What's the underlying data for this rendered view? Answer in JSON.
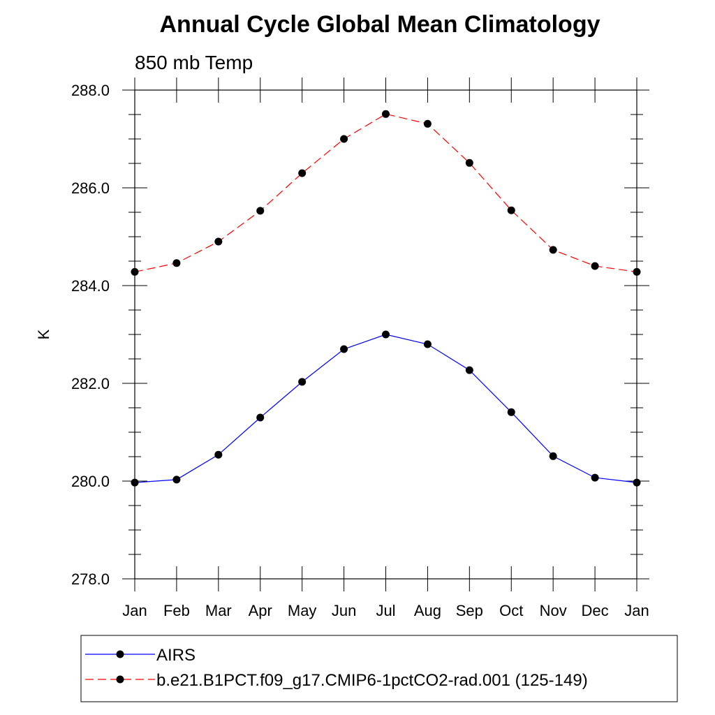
{
  "chart_data": {
    "type": "line",
    "title": "Annual Cycle Global Mean Climatology",
    "subtitle": "850 mb Temp",
    "xlabel": "",
    "ylabel": "K",
    "categories": [
      "Jan",
      "Feb",
      "Mar",
      "Apr",
      "May",
      "Jun",
      "Jul",
      "Aug",
      "Sep",
      "Oct",
      "Nov",
      "Dec",
      "Jan"
    ],
    "ylim": [
      278.0,
      288.0
    ],
    "yticks": [
      278.0,
      280.0,
      282.0,
      284.0,
      286.0,
      288.0
    ],
    "ytick_labels": [
      "278.0",
      "280.0",
      "282.0",
      "284.0",
      "286.0",
      "288.0"
    ],
    "y_minor_step": 0.5,
    "series": [
      {
        "name": "AIRS",
        "color": "#0000ff",
        "dash": "solid",
        "values": [
          279.97,
          280.03,
          280.54,
          281.3,
          282.03,
          282.7,
          283.0,
          282.8,
          282.27,
          281.41,
          280.51,
          280.07,
          279.97
        ]
      },
      {
        "name": "b.e21.B1PCT.f09_g17.CMIP6-1pctCO2-rad.001 (125-149)",
        "color": "#ff0000",
        "dash": "dashed",
        "values": [
          284.28,
          284.46,
          284.9,
          285.53,
          286.3,
          287.0,
          287.51,
          287.31,
          286.51,
          285.54,
          284.73,
          284.4,
          284.28
        ]
      }
    ],
    "legend_position": "bottom"
  }
}
